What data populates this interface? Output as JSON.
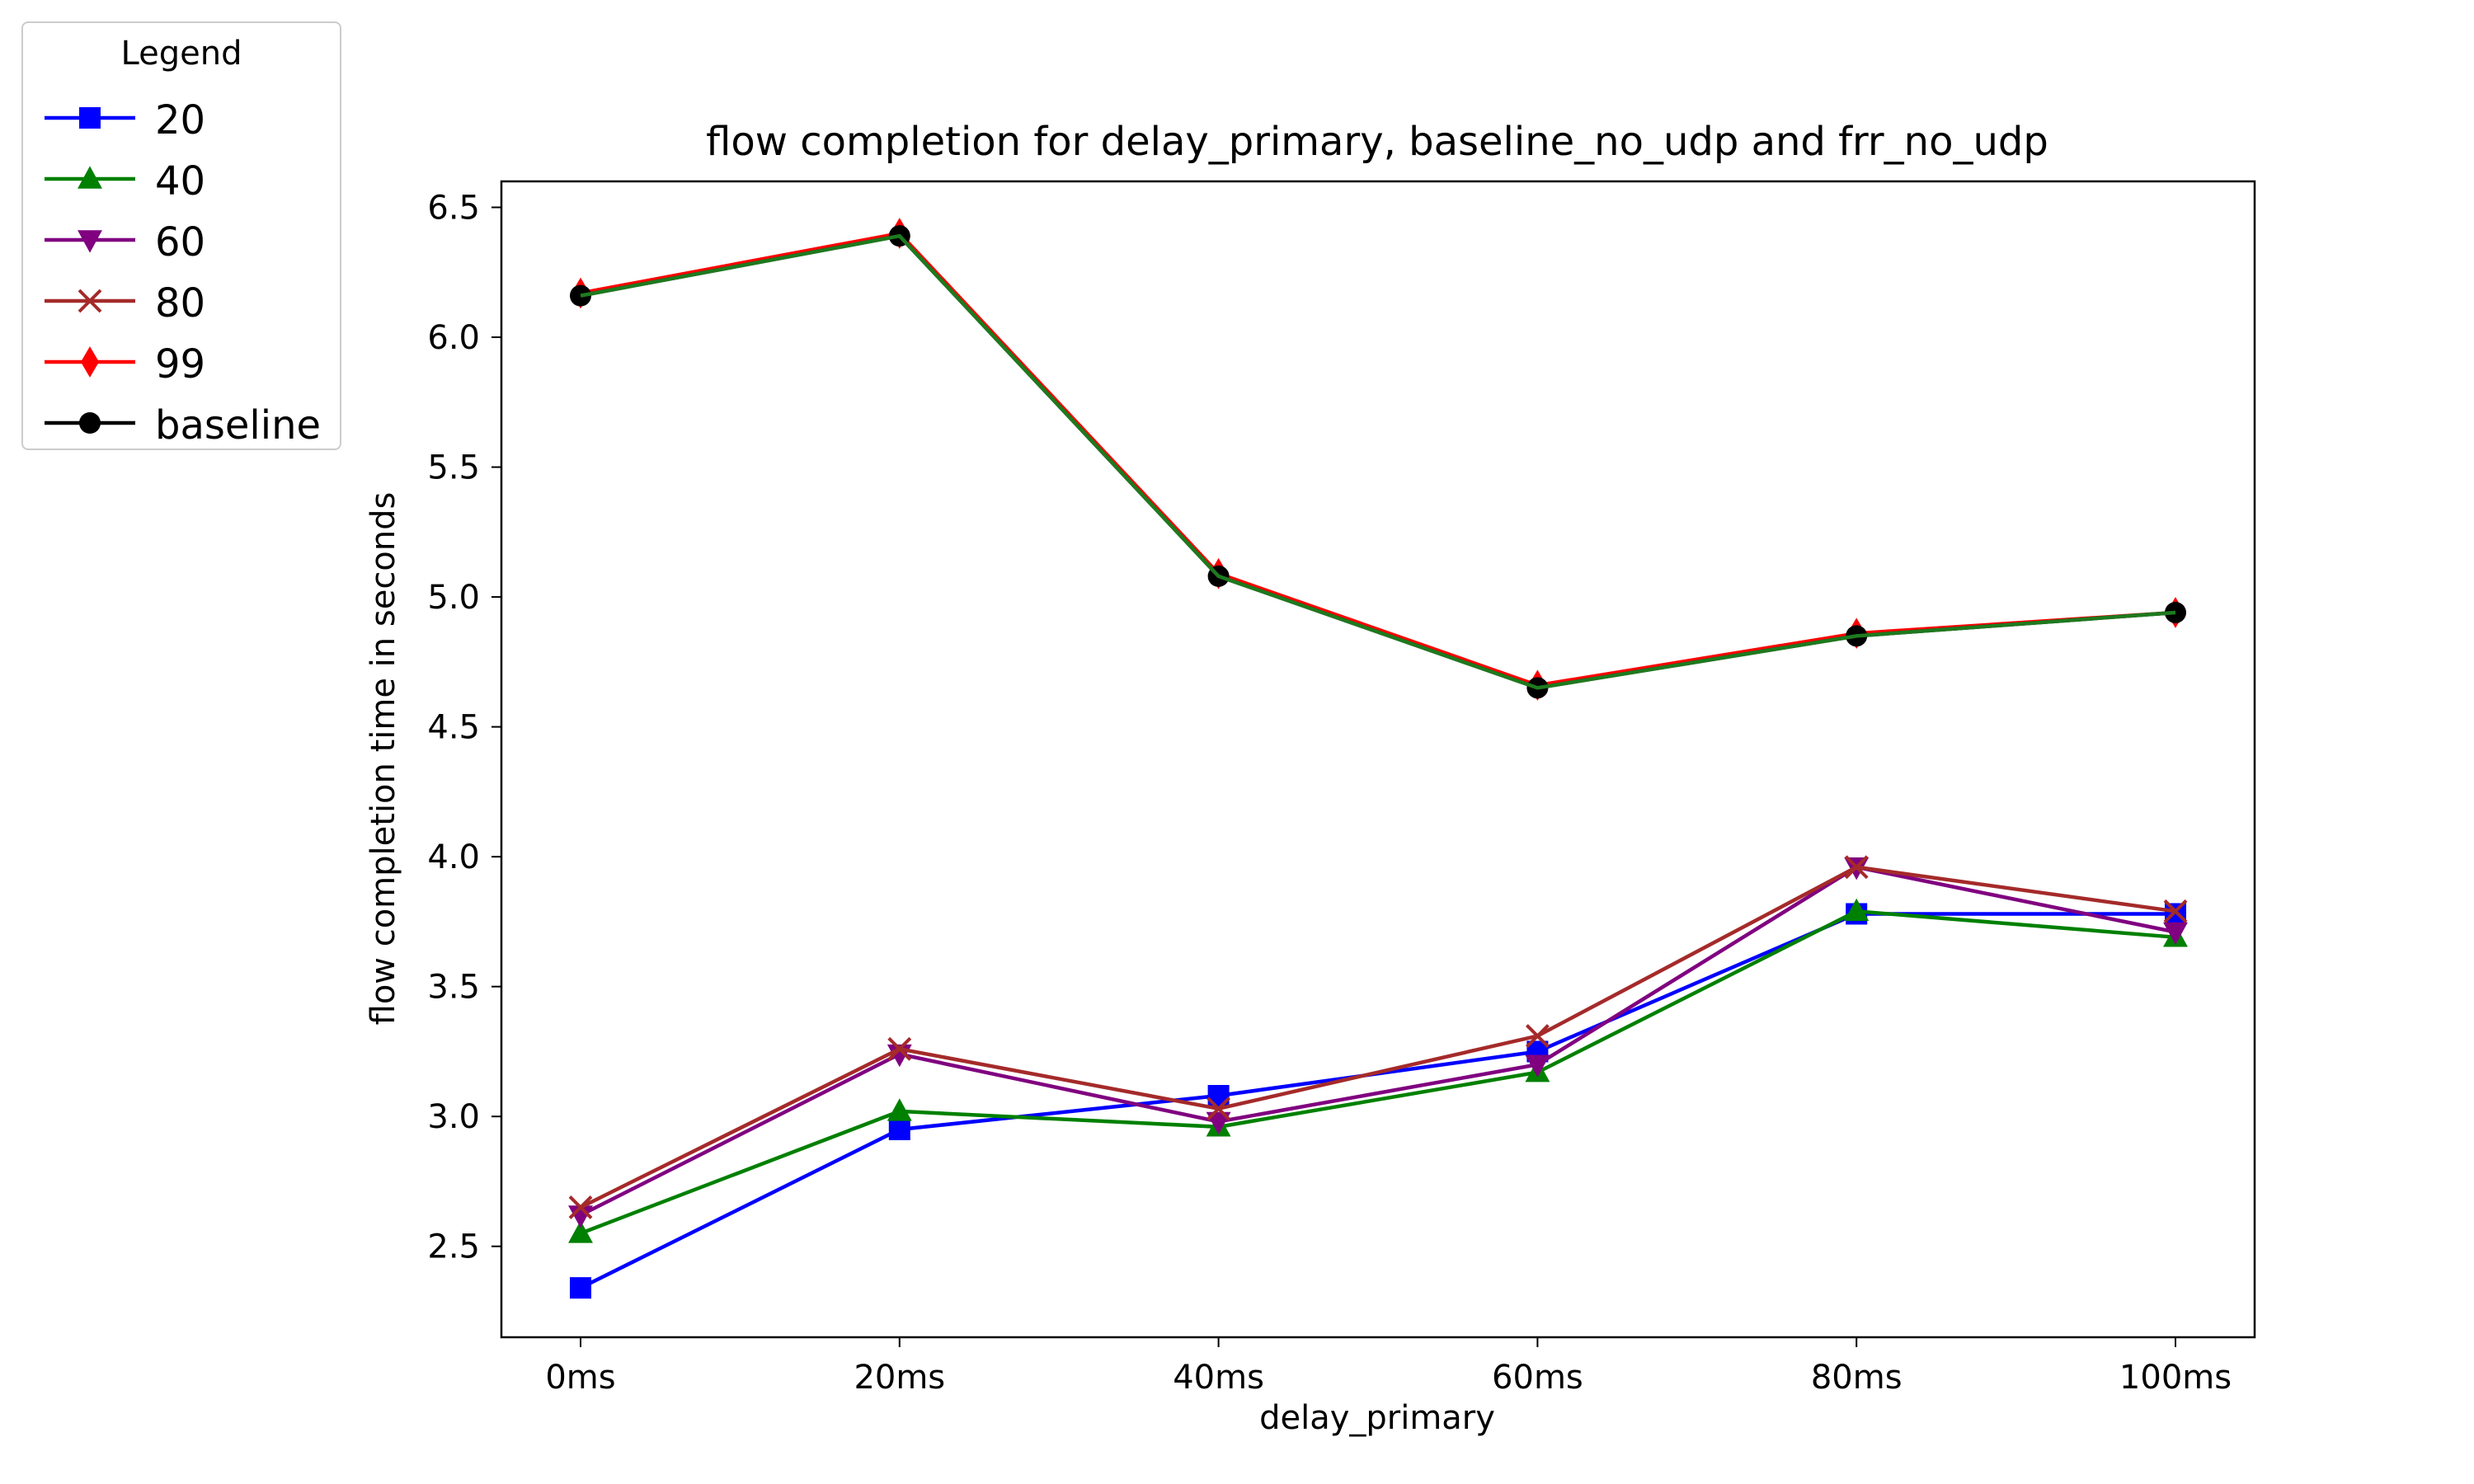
{
  "chart_data": {
    "type": "line",
    "title": "flow completion for delay_primary, baseline_no_udp and frr_no_udp",
    "xlabel": "delay_primary",
    "ylabel": "flow completion time in seconds",
    "categories": [
      "0ms",
      "20ms",
      "40ms",
      "60ms",
      "80ms",
      "100ms"
    ],
    "ylim": [
      2.15,
      6.6
    ],
    "yticks": [
      2.5,
      3.0,
      3.5,
      4.0,
      4.5,
      5.0,
      5.5,
      6.0,
      6.5
    ],
    "ytick_labels": [
      "2.5",
      "3.0",
      "3.5",
      "4.0",
      "4.5",
      "5.0",
      "5.5",
      "6.0",
      "6.5"
    ],
    "grid": false,
    "legend_title": "Legend",
    "legend_position": "outside-top-left",
    "series": [
      {
        "name": "20",
        "color": "#0000ff",
        "marker": "square",
        "values": [
          2.34,
          2.95,
          3.08,
          3.25,
          3.78,
          3.78
        ]
      },
      {
        "name": "40",
        "color": "#008000",
        "marker": "triangle-up",
        "values": [
          2.55,
          3.02,
          2.96,
          3.17,
          3.79,
          3.69
        ]
      },
      {
        "name": "60",
        "color": "#800080",
        "marker": "triangle-down",
        "values": [
          2.62,
          3.24,
          2.98,
          3.2,
          3.96,
          3.71
        ]
      },
      {
        "name": "80",
        "color": "#a52a2a",
        "marker": "x",
        "values": [
          2.65,
          3.26,
          3.03,
          3.31,
          3.96,
          3.79
        ]
      },
      {
        "name": "99",
        "color": "#ff0000",
        "marker": "diamond",
        "values": [
          6.17,
          6.4,
          5.09,
          4.66,
          4.86,
          4.94
        ]
      },
      {
        "name": "baseline",
        "color": "#000000",
        "marker": "circle",
        "values": [
          6.16,
          6.39,
          5.08,
          4.65,
          4.85,
          4.94
        ]
      }
    ],
    "overlay_line": {
      "color": "#1e7a1e",
      "values": [
        6.16,
        6.39,
        5.08,
        4.65,
        4.85,
        4.94
      ]
    }
  }
}
